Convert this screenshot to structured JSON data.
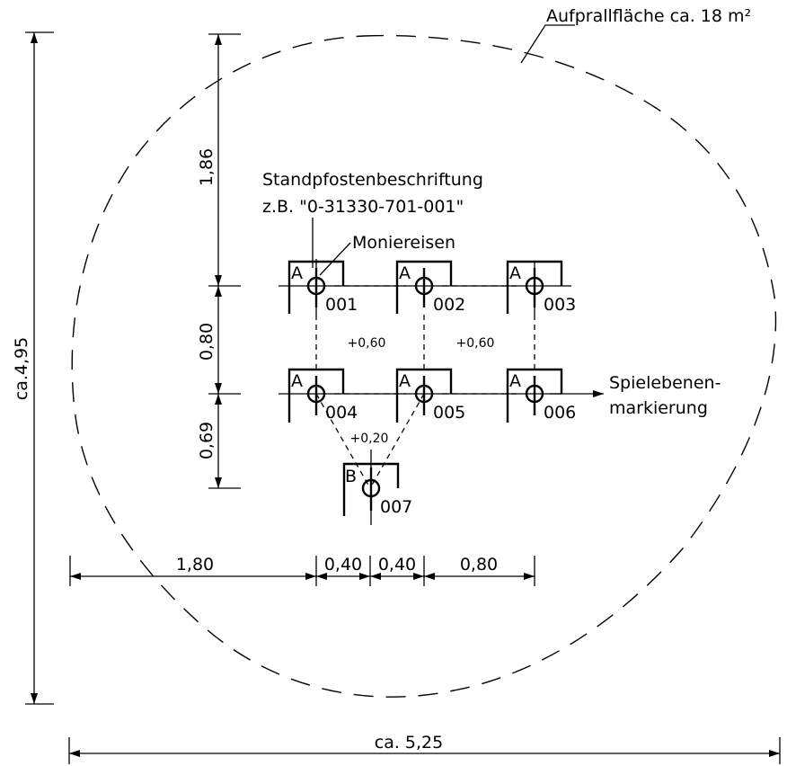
{
  "impact_area_label": "Aufprallfläche ca. 18 m²",
  "post_label_title": "Standpfostenbeschriftung",
  "post_label_example": "z.B. \"0-31330-701-001\"",
  "rebar_label": "Moniereisen",
  "play_level_label_line1": "Spielebenen-",
  "play_level_label_line2": "markierung",
  "posts": [
    {
      "type": "A",
      "number": "001"
    },
    {
      "type": "A",
      "number": "002"
    },
    {
      "type": "A",
      "number": "003"
    },
    {
      "type": "A",
      "number": "004"
    },
    {
      "type": "A",
      "number": "005"
    },
    {
      "type": "A",
      "number": "006"
    },
    {
      "type": "B",
      "number": "007"
    }
  ],
  "height_offsets": [
    "+0,60",
    "+0,60",
    "+0,20"
  ],
  "vertical_dims": [
    "1,86",
    "0,80",
    "0,69"
  ],
  "horizontal_dims": [
    "1,80",
    "0,40",
    "0,40",
    "0,80"
  ],
  "overall_height": "ca.4,95",
  "overall_width": "ca. 5,25"
}
